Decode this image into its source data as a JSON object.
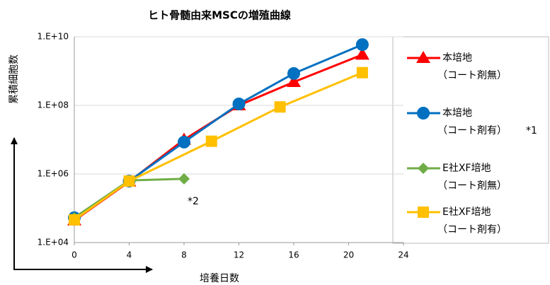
{
  "chart_data": {
    "type": "line",
    "title": "ヒト骨髄由来MSCの増殖曲線",
    "y_label": "累積細胞数",
    "x_label": "培養日数",
    "log_y": true,
    "grid": true,
    "legend": "right",
    "xlim": [
      0,
      24
    ],
    "xticks": [
      0,
      4,
      8,
      12,
      16,
      20,
      24
    ],
    "ylim": [
      10000,
      10000000000
    ],
    "yticks": [
      {
        "value": 10000,
        "label": "1.E+04"
      },
      {
        "value": 1000000,
        "label": "1.E+06"
      },
      {
        "value": 100000000,
        "label": "1.E+08"
      },
      {
        "value": 10000000000,
        "label": "1.E+10"
      }
    ],
    "series": [
      {
        "name": "本培地\n（コート剤無）",
        "color": "#ff0000",
        "marker": "triangle",
        "x": [
          0,
          4,
          8,
          12,
          16,
          21
        ],
        "values": [
          44000,
          600000,
          10000000,
          100000000,
          480000000,
          3000000000
        ]
      },
      {
        "name": "本培地\n（コート剤有）",
        "color": "#0070c0",
        "marker": "circle",
        "x": [
          0,
          4,
          8,
          12,
          16,
          21
        ],
        "values": [
          53000,
          620000,
          8500000,
          110000000,
          850000000,
          5900000000
        ]
      },
      {
        "name": "E社XF培地\n（コート剤無）",
        "color": "#70ad47",
        "marker": "diamond",
        "x": [
          0,
          4,
          8
        ],
        "values": [
          53000,
          650000,
          720000
        ]
      },
      {
        "name": "E社XF培地\n（コート剤有）",
        "color": "#ffc000",
        "marker": "square",
        "x": [
          0,
          4,
          10,
          15,
          21
        ],
        "values": [
          46000,
          620000,
          9000000,
          90000000,
          900000000
        ]
      }
    ],
    "annotations": [
      "*1",
      "*2"
    ]
  }
}
